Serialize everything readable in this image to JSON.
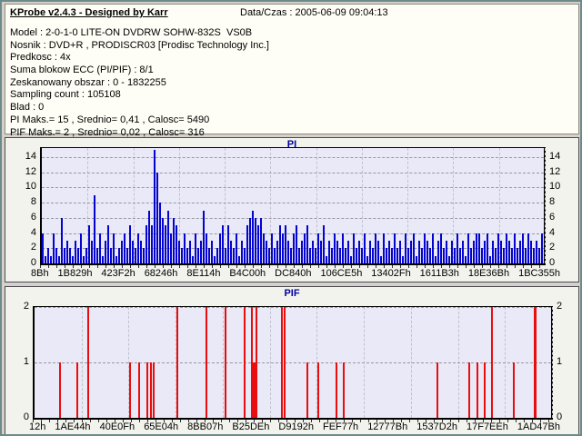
{
  "window": {
    "title": "KProbe v2.4.3 - Designed by Karr",
    "datetime_label": "Data/Czas : 2005-06-09 09:04:13"
  },
  "info": {
    "lines": [
      "Model : 2-0-1-0 LITE-ON DVDRW SOHW-832S  VS0B",
      "Nosnik : DVD+R , PRODISCR03 [Prodisc Technology Inc.]",
      "Predkosc : 4x",
      "Suma blokow ECC (PI/PIF) : 8/1",
      "Zeskanowany obszar : 0 - 1832255",
      "Sampling count : 105108",
      "Blad : 0",
      "PI Maks.= 15 , Srednio= 0,41 , Calosc= 5490",
      "PIF Maks.= 2 , Srednio= 0,02 , Calosc= 316"
    ]
  },
  "colors": {
    "pi_bar": "#0404CF",
    "pif_bar": "#E80E0E",
    "chart_title": "#0000A0",
    "plot_background": "#E9E9F7",
    "panel_background": "#F3F3ED",
    "window_background": "#D5D1C9"
  },
  "chart_data": [
    {
      "type": "bar",
      "title": "PI",
      "ylabel": "",
      "xlabel": "",
      "ylim": [
        0,
        15.2
      ],
      "yticks": [
        0,
        2,
        4,
        6,
        8,
        10,
        12,
        14
      ],
      "grid": "dashed horizontal and vertical",
      "legend": "none",
      "max": 15,
      "mean": 0.41,
      "total": 5490,
      "xticklabels": [
        "8Bh",
        "1B829h",
        "423F2h",
        "68246h",
        "8E114h",
        "B4C00h",
        "DC840h",
        "106CE5h",
        "13402Fh",
        "1611B3h",
        "18E36Bh",
        "1BC355h"
      ],
      "bar_spacing_px": 3,
      "values": [
        4,
        1,
        2,
        1,
        4,
        2,
        1,
        6,
        2,
        3,
        2,
        1,
        3,
        2,
        4,
        1,
        2,
        5,
        3,
        9,
        2,
        4,
        1,
        3,
        5,
        2,
        4,
        1,
        2,
        3,
        4,
        2,
        5,
        3,
        2,
        4,
        3,
        2,
        5,
        7,
        5,
        15,
        12,
        8,
        6,
        5,
        7,
        4,
        6,
        5,
        3,
        2,
        4,
        2,
        3,
        1,
        4,
        2,
        3,
        7,
        4,
        2,
        3,
        1,
        2,
        4,
        5,
        2,
        5,
        3,
        2,
        4,
        1,
        3,
        2,
        5,
        6,
        7,
        6,
        5,
        6,
        4,
        3,
        2,
        4,
        2,
        3,
        5,
        4,
        5,
        3,
        2,
        4,
        5,
        2,
        3,
        4,
        5,
        2,
        3,
        2,
        4,
        3,
        5,
        1,
        3,
        2,
        4,
        3,
        2,
        4,
        2,
        3,
        1,
        4,
        2,
        3,
        2,
        4,
        1,
        3,
        2,
        4,
        3,
        1,
        4,
        2,
        3,
        2,
        4,
        2,
        3,
        1,
        4,
        2,
        3,
        4,
        1,
        3,
        2,
        4,
        3,
        2,
        4,
        1,
        3,
        4,
        2,
        3,
        1,
        3,
        2,
        4,
        2,
        3,
        1,
        4,
        2,
        3,
        4,
        4,
        2,
        3,
        4,
        1,
        3,
        2,
        4,
        3,
        2,
        4,
        3,
        2,
        4,
        2,
        3,
        4,
        2,
        4,
        3,
        2,
        3,
        2,
        4
      ]
    },
    {
      "type": "bar",
      "title": "PIF",
      "ylabel": "",
      "xlabel": "",
      "ylim": [
        0,
        2
      ],
      "yticks": [
        0,
        1,
        2
      ],
      "grid": "dashed horizontal and vertical",
      "legend": "none",
      "max": 2,
      "mean": 0.02,
      "total": 316,
      "xticklabels": [
        "12h",
        "1AE44h",
        "40E0Fh",
        "65E04h",
        "8BB07h",
        "B25DEh",
        "D9192h",
        "FEF77h",
        "12777Bh",
        "1537D2h",
        "17F7EEh",
        "1AD47Bh"
      ],
      "points": [
        {
          "p": 0.047,
          "h": 1
        },
        {
          "p": 0.081,
          "h": 1
        },
        {
          "p": 0.102,
          "h": 2
        },
        {
          "p": 0.182,
          "h": 1
        },
        {
          "p": 0.2,
          "h": 1
        },
        {
          "p": 0.216,
          "h": 1
        },
        {
          "p": 0.224,
          "h": 1
        },
        {
          "p": 0.229,
          "h": 1
        },
        {
          "p": 0.275,
          "h": 2
        },
        {
          "p": 0.33,
          "h": 2
        },
        {
          "p": 0.368,
          "h": 2
        },
        {
          "p": 0.405,
          "h": 2
        },
        {
          "p": 0.419,
          "h": 2
        },
        {
          "p": 0.422,
          "h": 1,
          "w": 4
        },
        {
          "p": 0.427,
          "h": 2
        },
        {
          "p": 0.477,
          "h": 2
        },
        {
          "p": 0.482,
          "h": 2
        },
        {
          "p": 0.525,
          "h": 1
        },
        {
          "p": 0.547,
          "h": 1
        },
        {
          "p": 0.581,
          "h": 1
        },
        {
          "p": 0.595,
          "h": 1
        },
        {
          "p": 0.777,
          "h": 1
        },
        {
          "p": 0.839,
          "h": 1
        },
        {
          "p": 0.854,
          "h": 1
        },
        {
          "p": 0.868,
          "h": 1
        },
        {
          "p": 0.882,
          "h": 2
        },
        {
          "p": 0.925,
          "h": 1
        },
        {
          "p": 0.964,
          "h": 2,
          "w": 3
        }
      ]
    }
  ]
}
